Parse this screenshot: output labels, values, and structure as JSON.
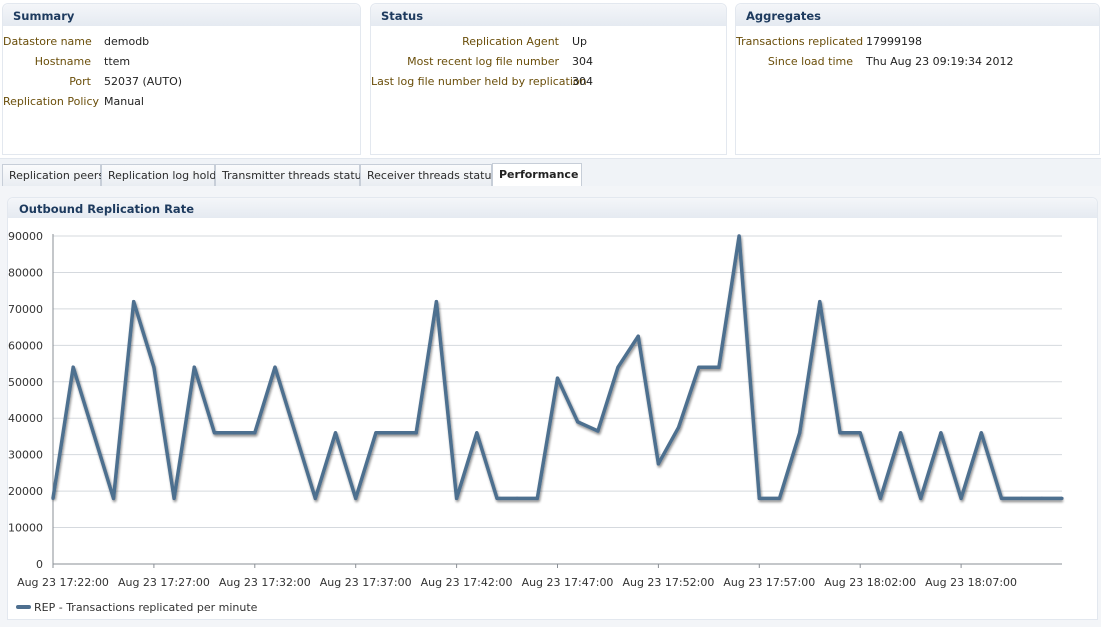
{
  "summary": {
    "title": "Summary",
    "rows": [
      {
        "label": "Datastore name",
        "value": "demodb"
      },
      {
        "label": "Hostname",
        "value": "ttem"
      },
      {
        "label": "Port",
        "value": "52037 (AUTO)"
      },
      {
        "label": "Replication Policy",
        "value": "Manual"
      }
    ]
  },
  "status": {
    "title": "Status",
    "rows": [
      {
        "label": "Replication Agent",
        "value": "Up"
      },
      {
        "label": "Most recent log file number",
        "value": "304"
      },
      {
        "label": "Last log file number held by replication",
        "value": "304"
      }
    ]
  },
  "aggregates": {
    "title": "Aggregates",
    "rows": [
      {
        "label": "Transactions replicated",
        "value": "17999198"
      },
      {
        "label": "Since load time",
        "value": "Thu Aug 23 09:19:34 2012"
      }
    ]
  },
  "tabs": [
    {
      "label": "Replication peers",
      "active": false
    },
    {
      "label": "Replication log holds",
      "active": false
    },
    {
      "label": "Transmitter threads status",
      "active": false
    },
    {
      "label": "Receiver threads status",
      "active": false
    },
    {
      "label": "Performance",
      "active": true
    }
  ],
  "chart": {
    "title": "Outbound Replication Rate"
  },
  "colors": {
    "line": "#4e6f8f",
    "label": "#6a4e0a",
    "header": "#1d3a5e"
  },
  "chart_data": {
    "type": "line",
    "ylim": [
      0,
      90000
    ],
    "yticks": [
      0,
      10000,
      20000,
      30000,
      40000,
      50000,
      60000,
      70000,
      80000,
      90000
    ],
    "ytick_labels": [
      "0",
      "10000",
      "20000",
      "30000",
      "40000",
      "50000",
      "60000",
      "70000",
      "80000",
      "90000"
    ],
    "xticks": [
      "Aug 23 17:22:00",
      "Aug 23 17:27:00",
      "Aug 23 17:32:00",
      "Aug 23 17:37:00",
      "Aug 23 17:42:00",
      "Aug 23 17:47:00",
      "Aug 23 17:52:00",
      "Aug 23 17:57:00",
      "Aug 23 18:02:00",
      "Aug 23 18:07:00"
    ],
    "x_minutes_range": [
      0,
      50
    ],
    "grid": true,
    "legend_position": "bottom-left",
    "series": [
      {
        "name": "REP - Transactions replicated per minute",
        "x": [
          0,
          1,
          2,
          3,
          4,
          5,
          6,
          7,
          8,
          9,
          10,
          11,
          12,
          13,
          14,
          15,
          16,
          17,
          18,
          19,
          20,
          21,
          22,
          23,
          24,
          25,
          26,
          27,
          28,
          29,
          30,
          31,
          32,
          33,
          34,
          35,
          36,
          37,
          38,
          39,
          40,
          41,
          42,
          43,
          44,
          45,
          46,
          47,
          48,
          49,
          50
        ],
        "values": [
          18000,
          54000,
          36000,
          18000,
          72000,
          54000,
          18000,
          54000,
          36000,
          36000,
          36000,
          54000,
          36000,
          18000,
          36000,
          18000,
          36000,
          36000,
          36000,
          72000,
          18000,
          36000,
          18000,
          18000,
          18000,
          51000,
          39000,
          36500,
          54000,
          62500,
          27500,
          37500,
          54000,
          54000,
          90000,
          18000,
          18000,
          36000,
          72000,
          36000,
          36000,
          18000,
          36000,
          18000,
          36000,
          18000,
          36000,
          18000,
          18000,
          18000,
          18000
        ]
      }
    ]
  }
}
